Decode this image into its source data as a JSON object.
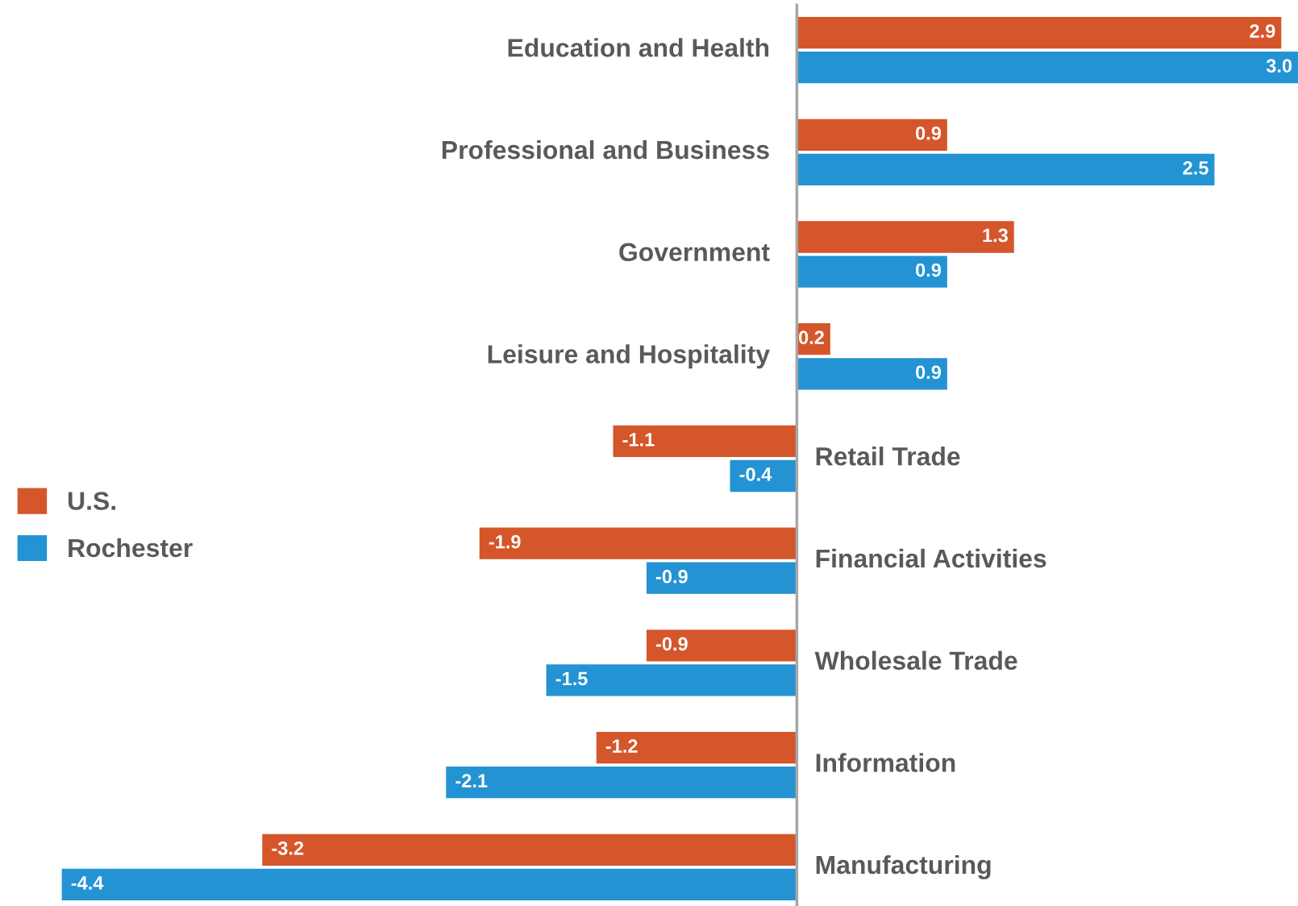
{
  "chart_data": {
    "type": "bar",
    "orientation": "horizontal",
    "categories": [
      "Education and Health",
      "Professional and Business",
      "Government",
      "Leisure and Hospitality",
      "Retail Trade",
      "Financial Activities",
      "Wholesale Trade",
      "Information",
      "Manufacturing"
    ],
    "series": [
      {
        "name": "U.S.",
        "color": "#d5562a",
        "values": [
          2.9,
          0.9,
          1.3,
          0.2,
          -1.1,
          -1.9,
          -0.9,
          -1.2,
          -3.2
        ],
        "value_labels": [
          "2.9",
          "0.9",
          "1.3",
          "0.2",
          "-1.1",
          "-1.9",
          "-0.9",
          "-1.2",
          "-3.2"
        ]
      },
      {
        "name": "Rochester",
        "color": "#2393d3",
        "values": [
          3.0,
          2.5,
          0.9,
          0.9,
          -0.4,
          -0.9,
          -1.5,
          -2.1,
          -4.4
        ],
        "value_labels": [
          "3.0",
          "2.5",
          "0.9",
          "0.9",
          "-0.4",
          "-0.9",
          "-1.5",
          "-2.1",
          "-4.4"
        ]
      }
    ],
    "xlim": [
      -4.77,
      3.0
    ],
    "tick_labels": "y",
    "legend": "left"
  }
}
